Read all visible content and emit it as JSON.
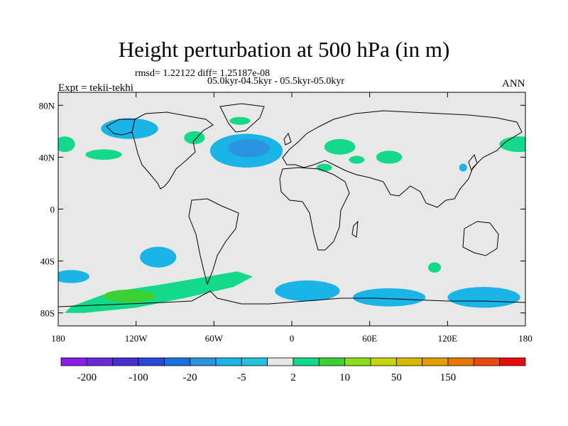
{
  "header": {
    "title": "Height perturbation at 500 hPa (in m)",
    "stats": "rmsd= 1.22122 diff= 1.25187e-08",
    "period": "05.0kyr-04.5kyr - 05.5kyr-05.0kyr",
    "experiment": "Expt = tekii-tekhi",
    "season": "ANN"
  },
  "map": {
    "projection": "cylindrical-equidistant",
    "lon_range": [
      -180,
      180
    ],
    "lat_range": [
      -90,
      90
    ],
    "background_color": "#e8e8e8",
    "y_ticks": [
      {
        "lat": 80,
        "label": "80N"
      },
      {
        "lat": 40,
        "label": "40N"
      },
      {
        "lat": 0,
        "label": "0"
      },
      {
        "lat": -40,
        "label": "40S"
      },
      {
        "lat": -80,
        "label": "80S"
      }
    ],
    "x_ticks": [
      {
        "lon": -180,
        "label": "180"
      },
      {
        "lon": -120,
        "label": "120W"
      },
      {
        "lon": -60,
        "label": "60W"
      },
      {
        "lon": 0,
        "label": "0"
      },
      {
        "lon": 60,
        "label": "60E"
      },
      {
        "lon": 120,
        "label": "120E"
      },
      {
        "lon": 180,
        "label": "180"
      }
    ],
    "anomalies": [
      {
        "lon": -125,
        "lat": 62,
        "rlon": 22,
        "rlat": 8,
        "level": "neg"
      },
      {
        "lon": -35,
        "lat": 45,
        "rlon": 28,
        "rlat": 13,
        "level": "neg"
      },
      {
        "lon": -33,
        "lat": 47,
        "rlon": 16,
        "rlat": 7,
        "level": "neg2"
      },
      {
        "lon": -103,
        "lat": -37,
        "rlon": 14,
        "rlat": 8,
        "level": "neg"
      },
      {
        "lon": -170,
        "lat": -52,
        "rlon": 14,
        "rlat": 5,
        "level": "neg"
      },
      {
        "lon": 12,
        "lat": -63,
        "rlon": 25,
        "rlat": 8,
        "level": "neg"
      },
      {
        "lon": 75,
        "lat": -68,
        "rlon": 28,
        "rlat": 7,
        "level": "neg"
      },
      {
        "lon": 148,
        "lat": -68,
        "rlon": 28,
        "rlat": 8,
        "level": "neg"
      },
      {
        "lon": 132,
        "lat": 32,
        "rlon": 3,
        "rlat": 3,
        "level": "neg"
      },
      {
        "lon": 175,
        "lat": 50,
        "rlon": 15,
        "rlat": 6,
        "level": "pos"
      },
      {
        "lon": -175,
        "lat": 50,
        "rlon": 8,
        "rlat": 6,
        "level": "pos"
      },
      {
        "lon": -145,
        "lat": 42,
        "rlon": 14,
        "rlat": 4,
        "level": "pos"
      },
      {
        "lon": -75,
        "lat": 55,
        "rlon": 8,
        "rlat": 5,
        "level": "pos"
      },
      {
        "lon": -40,
        "lat": 68,
        "rlon": 8,
        "rlat": 3,
        "level": "pos"
      },
      {
        "lon": 37,
        "lat": 48,
        "rlon": 12,
        "rlat": 6,
        "level": "pos"
      },
      {
        "lon": 50,
        "lat": 38,
        "rlon": 6,
        "rlat": 3,
        "level": "pos"
      },
      {
        "lon": 75,
        "lat": 40,
        "rlon": 10,
        "rlat": 5,
        "level": "pos"
      },
      {
        "lon": 25,
        "lat": 32,
        "rlon": 6,
        "rlat": 3,
        "level": "pos"
      },
      {
        "lon": 110,
        "lat": -45,
        "rlon": 5,
        "rlat": 4,
        "level": "pos"
      }
    ],
    "southern_band": {
      "points": [
        [
          -170,
          -75
        ],
        [
          -140,
          -64
        ],
        [
          -100,
          -58
        ],
        [
          -65,
          -52
        ],
        [
          -42,
          -48
        ],
        [
          -30,
          -52
        ],
        [
          -45,
          -60
        ],
        [
          -80,
          -68
        ],
        [
          -120,
          -76
        ],
        [
          -160,
          -80
        ],
        [
          -175,
          -80
        ]
      ],
      "inner": {
        "lon": -125,
        "lat": -67,
        "rlon": 20,
        "rlat": 5
      },
      "level": "pos"
    }
  },
  "colorbar": {
    "colors": [
      "#8a1ee8",
      "#6a2ad8",
      "#4a2ed0",
      "#2a48d8",
      "#1c6fe0",
      "#2a94e0",
      "#1ab4e6",
      "#22c2e0",
      "#e6e6e6",
      "#14d88a",
      "#3cd034",
      "#8ade1c",
      "#c8d610",
      "#d8b800",
      "#e0a000",
      "#e67800",
      "#e84a10",
      "#e80c0c"
    ],
    "labels": [
      {
        "index": 1,
        "text": "-200"
      },
      {
        "index": 3,
        "text": "-100"
      },
      {
        "index": 5,
        "text": "-20"
      },
      {
        "index": 7,
        "text": "-5"
      },
      {
        "index": 9,
        "text": "2"
      },
      {
        "index": 11,
        "text": "10"
      },
      {
        "index": 13,
        "text": "50"
      },
      {
        "index": 15,
        "text": "150"
      }
    ]
  },
  "colors": {
    "neg": "#1ab4e6",
    "neg2": "#2a94e0",
    "pos": "#14d88a",
    "pos2": "#3cd034",
    "land_outline": "#000000"
  }
}
